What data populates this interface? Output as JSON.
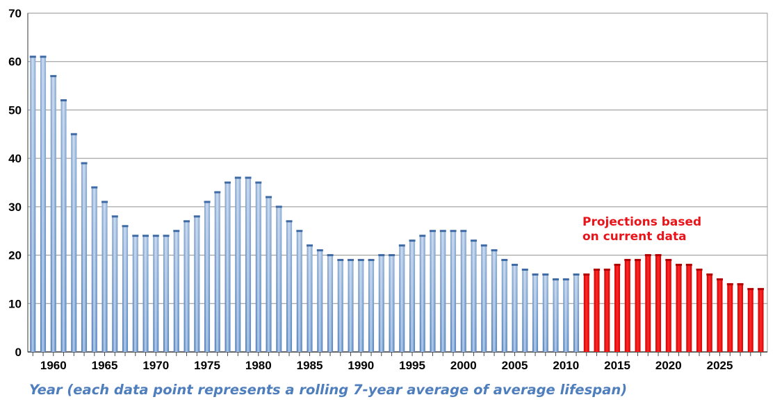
{
  "chart_data": {
    "type": "bar",
    "title": "",
    "xlabel": "Year (each data point represents a rolling 7-year average of average lifespan)",
    "ylabel": "",
    "ylim": [
      0,
      70
    ],
    "yticks": [
      0,
      10,
      20,
      30,
      40,
      50,
      60,
      70
    ],
    "xticks": [
      1960,
      1965,
      1970,
      1975,
      1980,
      1985,
      1990,
      1995,
      2000,
      2005,
      2010,
      2015,
      2020,
      2025
    ],
    "grid": true,
    "annotation": {
      "text_lines": [
        "Projections based",
        "on current data"
      ],
      "color": "#e8141a"
    },
    "colors": {
      "historical": "#5b8cc4",
      "projection": "#ee1111"
    },
    "categories": [
      1958,
      1959,
      1960,
      1961,
      1962,
      1963,
      1964,
      1965,
      1966,
      1967,
      1968,
      1969,
      1970,
      1971,
      1972,
      1973,
      1974,
      1975,
      1976,
      1977,
      1978,
      1979,
      1980,
      1981,
      1982,
      1983,
      1984,
      1985,
      1986,
      1987,
      1988,
      1989,
      1990,
      1991,
      1992,
      1993,
      1994,
      1995,
      1996,
      1997,
      1998,
      1999,
      2000,
      2001,
      2002,
      2003,
      2004,
      2005,
      2006,
      2007,
      2008,
      2009,
      2010,
      2011,
      2012,
      2013,
      2014,
      2015,
      2016,
      2017,
      2018,
      2019,
      2020,
      2021,
      2022,
      2023,
      2024,
      2025,
      2026,
      2027,
      2028,
      2029
    ],
    "series": [
      {
        "name": "",
        "kind": "historical",
        "x": [
          1958,
          1959,
          1960,
          1961,
          1962,
          1963,
          1964,
          1965,
          1966,
          1967,
          1968,
          1969,
          1970,
          1971,
          1972,
          1973,
          1974,
          1975,
          1976,
          1977,
          1978,
          1979,
          1980,
          1981,
          1982,
          1983,
          1984,
          1985,
          1986,
          1987,
          1988,
          1989,
          1990,
          1991,
          1992,
          1993,
          1994,
          1995,
          1996,
          1997,
          1998,
          1999,
          2000,
          2001,
          2002,
          2003,
          2004,
          2005,
          2006,
          2007,
          2008,
          2009,
          2010,
          2011
        ],
        "values": [
          61,
          61,
          57,
          52,
          45,
          39,
          34,
          31,
          28,
          26,
          24,
          24,
          24,
          24,
          25,
          27,
          28,
          31,
          33,
          35,
          36,
          36,
          35,
          32,
          30,
          27,
          25,
          22,
          21,
          20,
          19,
          19,
          19,
          19,
          20,
          20,
          22,
          23,
          24,
          25,
          25,
          25,
          25,
          23,
          22,
          21,
          19,
          18,
          17,
          16,
          16,
          15,
          15,
          16
        ]
      },
      {
        "name": "",
        "kind": "projection",
        "x": [
          2012,
          2013,
          2014,
          2015,
          2016,
          2017,
          2018,
          2019,
          2020,
          2021,
          2022,
          2023,
          2024,
          2025,
          2026,
          2027,
          2028,
          2029
        ],
        "values": [
          16,
          17,
          17,
          18,
          19,
          19,
          20,
          20,
          19,
          18,
          18,
          17,
          16,
          15,
          14,
          14,
          13,
          13
        ]
      }
    ]
  }
}
